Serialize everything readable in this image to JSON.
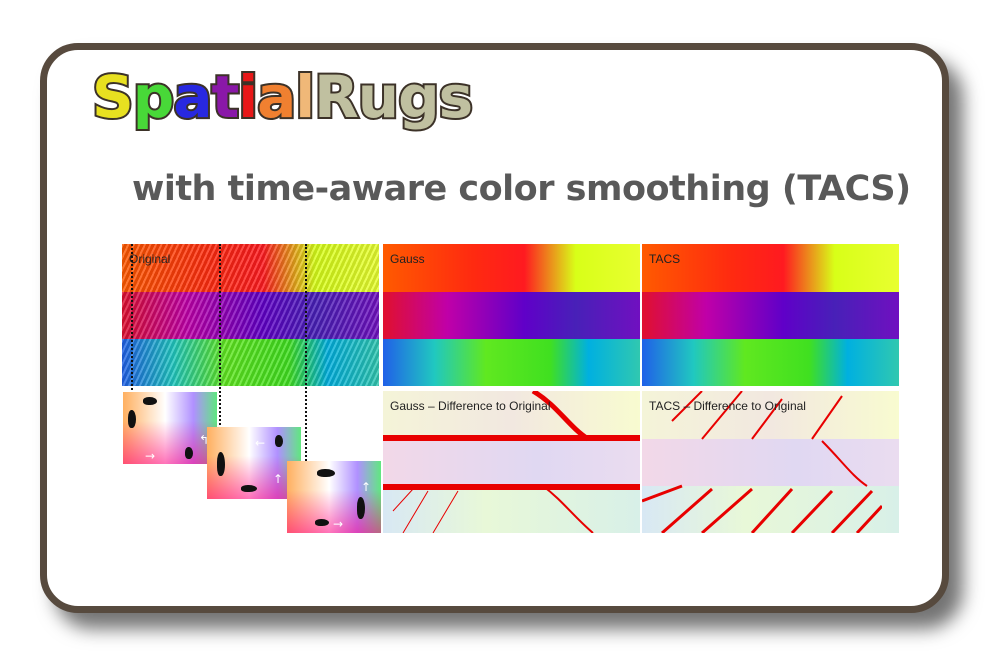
{
  "title": {
    "letters": [
      {
        "ch": "S",
        "color": "#e8e020"
      },
      {
        "ch": "p",
        "color": "#48d838"
      },
      {
        "ch": "a",
        "color": "#2828e0"
      },
      {
        "ch": "t",
        "color": "#8a18a8"
      },
      {
        "ch": "i",
        "color": "#e81818"
      },
      {
        "ch": "a",
        "color": "#f08030"
      },
      {
        "ch": "l",
        "color": "#f0b878"
      },
      {
        "ch": "R",
        "color": "#c0c0a0"
      },
      {
        "ch": "u",
        "color": "#c0c0a0"
      },
      {
        "ch": "g",
        "color": "#c0c0a0"
      },
      {
        "ch": "s",
        "color": "#c0c0a0"
      }
    ]
  },
  "subtitle": "with time-aware color smoothing (TACS)",
  "panels": {
    "original": "Original",
    "gauss": "Gauss",
    "tacs": "TACS",
    "gauss_diff": "Gauss – Difference to Original",
    "tacs_diff": "TACS – Difference to Original"
  },
  "colors": {
    "border": "#574a3e",
    "diff_line": "#e80000"
  }
}
